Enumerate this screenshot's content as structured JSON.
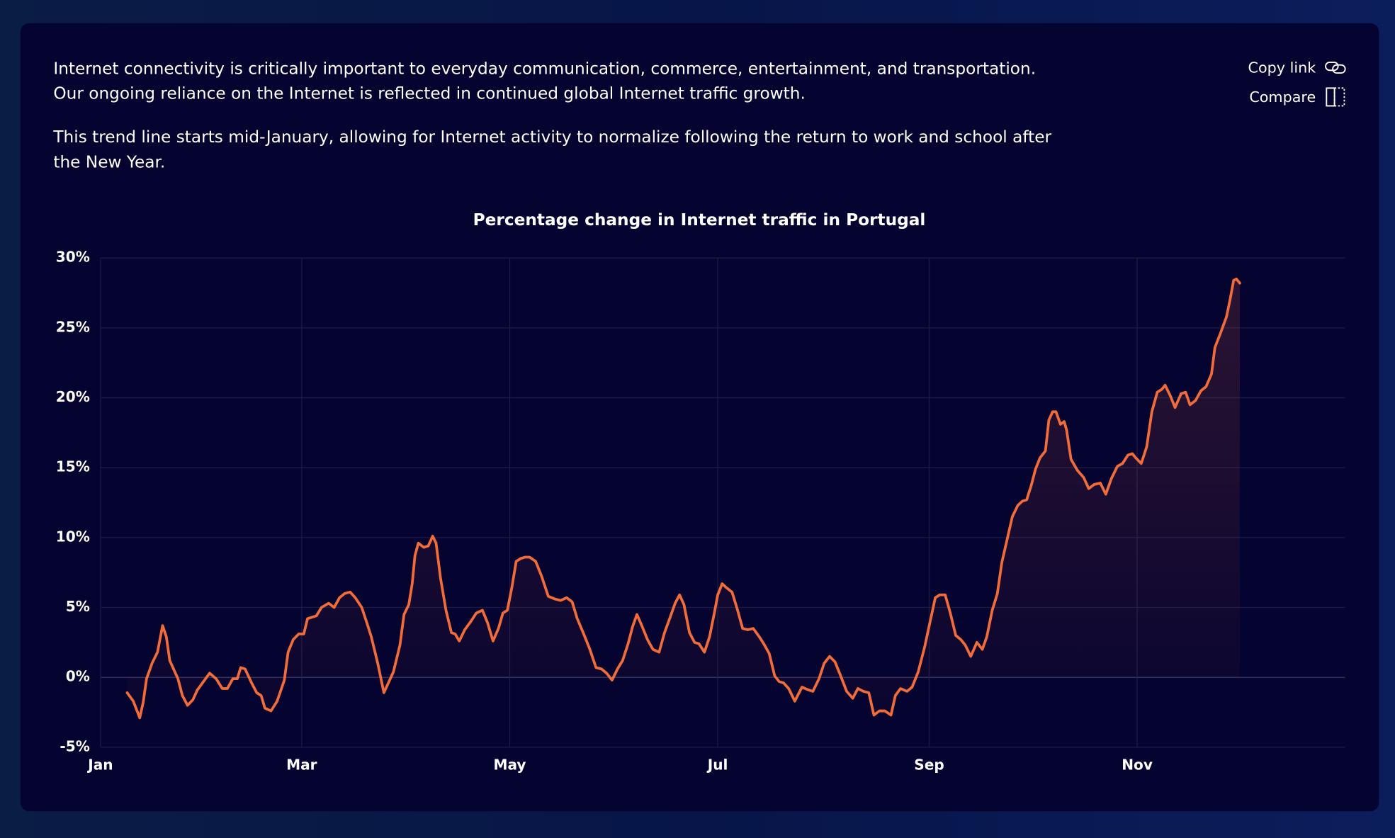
{
  "intro": [
    [
      "Internet connectivity is critically important to everyday communication, commerce, entertainment, and transportation.",
      "Our ongoing reliance on the Internet is reflected in continued global Internet traffic growth."
    ],
    [
      "This trend line starts mid-January, allowing for Internet activity to normalize following the return to work and school after",
      "the New Year."
    ]
  ],
  "actions": [
    "Copy link",
    "Compare"
  ],
  "chart_data": {
    "type": "line",
    "title": "Percentage change in Internet traffic in Portugal",
    "xlim": [
      0,
      365
    ],
    "xticks": [
      {
        "value": 0,
        "label": "Jan"
      },
      {
        "value": 59,
        "label": "Mar"
      },
      {
        "value": 120,
        "label": "May"
      },
      {
        "value": 181,
        "label": "Jul"
      },
      {
        "value": 243,
        "label": "Sep"
      },
      {
        "value": 304,
        "label": "Nov"
      }
    ],
    "ylim": [
      -5,
      30
    ],
    "yticks": [
      {
        "value": -5,
        "label": "-5%"
      },
      {
        "value": 0,
        "label": "0%"
      },
      {
        "value": 5,
        "label": "5%"
      },
      {
        "value": 10,
        "label": "10%"
      },
      {
        "value": 15,
        "label": "15%"
      },
      {
        "value": 20,
        "label": "20%"
      },
      {
        "value": 25,
        "label": "25%"
      },
      {
        "value": 30,
        "label": "30%"
      }
    ],
    "grid": true,
    "series": [
      {
        "name": "Portugal",
        "color": "#f26b3a",
        "x": [
          7.8,
          9.6,
          11.5,
          12.5,
          13.5,
          15.1,
          16.7,
          18.2,
          19.3,
          20.3,
          22.7,
          24,
          25.5,
          27.1,
          28.4,
          30.2,
          32,
          33.9,
          35.7,
          37.2,
          38.8,
          40.1,
          41.1,
          42.4,
          44.3,
          45.8,
          47.1,
          48.2,
          50,
          51.8,
          53.9,
          55,
          56.5,
          58.1,
          59.6,
          60.7,
          63.3,
          64.8,
          66.9,
          68.5,
          70.1,
          71.6,
          73.2,
          74.7,
          76.6,
          78.1,
          79.4,
          81.3,
          83.1,
          84.6,
          85.9,
          87.8,
          89,
          90.4,
          91.4,
          92.2,
          93.2,
          94.8,
          96.1,
          97.4,
          98.4,
          99.7,
          101.3,
          102.9,
          104,
          105.2,
          106.8,
          108.6,
          110.2,
          112,
          113.5,
          115.1,
          116.7,
          118,
          119.3,
          120.6,
          121.9,
          123.2,
          124.5,
          125.8,
          127.6,
          129.4,
          131.3,
          133.3,
          134.9,
          136.7,
          138.3,
          139.8,
          141.7,
          143.5,
          145.3,
          146.9,
          148.4,
          150,
          151.6,
          153.1,
          154.7,
          156,
          157.3,
          158.9,
          160.4,
          162,
          163.8,
          165.4,
          166.9,
          168.5,
          169.8,
          171.1,
          172.7,
          174.2,
          175.5,
          177.1,
          178.6,
          180,
          181,
          182.3,
          183.6,
          185.2,
          186.7,
          188.3,
          189.8,
          191.4,
          193.2,
          194.5,
          196.1,
          197.7,
          199,
          200.3,
          201.8,
          203.6,
          205.7,
          207.6,
          208.9,
          210.7,
          212.2,
          213.8,
          215.4,
          216.9,
          218.8,
          220.6,
          222.1,
          223.7,
          225.3,
          226.8,
          228.4,
          230,
          231.8,
          233.1,
          234.6,
          236.5,
          238,
          239.8,
          241.7,
          243.2,
          244.8,
          246.1,
          247.7,
          249.2,
          250.8,
          252.3,
          253.6,
          255.2,
          257,
          258.6,
          259.9,
          261.5,
          263,
          264.3,
          265.9,
          267.4,
          269,
          270.3,
          271.6,
          272.9,
          274.2,
          275.5,
          277.1,
          278.1,
          279.2,
          280.2,
          281.5,
          282.6,
          283.3,
          284.6,
          286.5,
          288.3,
          289.8,
          291.4,
          293.2,
          294.8,
          296.4,
          298.2,
          299.7,
          301.3,
          302.6,
          303.6,
          305.2,
          306.8,
          308.3,
          309.9,
          311.2,
          312.2,
          313.8,
          315.1,
          316.9,
          318.2,
          319.5,
          321.1,
          322.7,
          324.2,
          325.8,
          326.8,
          328.4,
          330.2,
          331.3,
          332.3,
          333.1,
          334.1
        ],
        "values": [
          -1.1,
          -1.7,
          -2.9,
          -1.8,
          -0.1,
          1.0,
          1.8,
          3.7,
          2.9,
          1.2,
          -0.1,
          -1.3,
          -2.0,
          -1.6,
          -0.9,
          -0.3,
          0.3,
          -0.1,
          -0.8,
          -0.8,
          -0.1,
          -0.1,
          0.7,
          0.6,
          -0.4,
          -1.1,
          -1.3,
          -2.2,
          -2.4,
          -1.7,
          -0.2,
          1.8,
          2.7,
          3.1,
          3.1,
          4.2,
          4.4,
          5.0,
          5.3,
          5.0,
          5.7,
          6.0,
          6.1,
          5.7,
          5.0,
          3.9,
          2.9,
          1.0,
          -1.1,
          -0.3,
          0.4,
          2.3,
          4.5,
          5.2,
          6.7,
          8.7,
          9.6,
          9.3,
          9.4,
          10.1,
          9.6,
          7.1,
          4.8,
          3.2,
          3.1,
          2.6,
          3.4,
          4.0,
          4.6,
          4.8,
          3.9,
          2.6,
          3.5,
          4.6,
          4.8,
          6.4,
          8.3,
          8.5,
          8.6,
          8.6,
          8.3,
          7.2,
          5.8,
          5.6,
          5.5,
          5.7,
          5.4,
          4.2,
          3.1,
          2.0,
          0.7,
          0.6,
          0.3,
          -0.2,
          0.6,
          1.2,
          2.4,
          3.6,
          4.5,
          3.6,
          2.7,
          2.0,
          1.8,
          3.2,
          4.2,
          5.3,
          5.9,
          5.2,
          3.2,
          2.5,
          2.4,
          1.8,
          2.9,
          4.6,
          5.9,
          6.7,
          6.4,
          6.1,
          4.9,
          3.5,
          3.4,
          3.5,
          2.9,
          2.4,
          1.7,
          0.1,
          -0.3,
          -0.4,
          -0.8,
          -1.7,
          -0.7,
          -0.9,
          -1.0,
          -0.1,
          1.0,
          1.5,
          1.1,
          0.2,
          -1.0,
          -1.5,
          -0.8,
          -1.0,
          -1.1,
          -2.7,
          -2.4,
          -2.4,
          -2.7,
          -1.3,
          -0.8,
          -1.0,
          -0.7,
          0.4,
          2.2,
          3.9,
          5.7,
          5.9,
          5.9,
          4.6,
          3.0,
          2.7,
          2.3,
          1.5,
          2.5,
          2.0,
          2.9,
          4.8,
          6.0,
          8.2,
          9.9,
          11.5,
          12.3,
          12.6,
          12.7,
          13.7,
          14.9,
          15.7,
          16.2,
          18.4,
          19.0,
          19.0,
          18.1,
          18.3,
          17.7,
          15.6,
          14.8,
          14.3,
          13.5,
          13.8,
          13.9,
          13.1,
          14.2,
          15.1,
          15.3,
          15.9,
          16.0,
          15.7,
          15.3,
          16.5,
          19.0,
          20.4,
          20.6,
          20.9,
          20.1,
          19.3,
          20.3,
          20.4,
          19.5,
          19.8,
          20.5,
          20.8,
          21.7,
          23.6,
          24.6,
          25.8,
          27.1,
          28.4,
          28.5,
          28.2
        ]
      }
    ]
  }
}
